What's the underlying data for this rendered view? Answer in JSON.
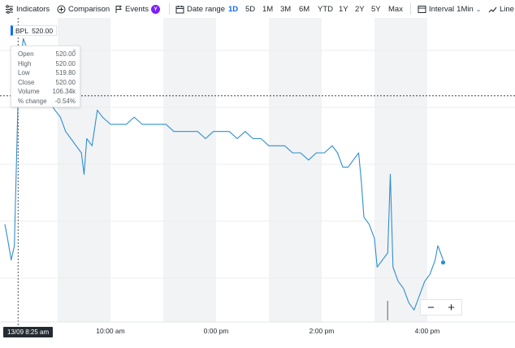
{
  "toolbar": {
    "indicators_label": "Indicators",
    "comparison_label": "Comparison",
    "events_label": "Events",
    "events_badge": "Y",
    "date_range_label": "Date range",
    "ranges": [
      "1D",
      "5D",
      "1M",
      "3M",
      "6M",
      "YTD",
      "1Y",
      "2Y",
      "5Y",
      "Max"
    ],
    "active_range": "1D",
    "interval_label": "Interval",
    "interval_value": "1Min",
    "chart_type_label": "Line"
  },
  "ticker": {
    "symbol": "BPL",
    "value": "520.00"
  },
  "tooltip": {
    "rows": [
      {
        "label": "Open",
        "value": "520.00"
      },
      {
        "label": "High",
        "value": "520.00"
      },
      {
        "label": "Low",
        "value": "519.80"
      },
      {
        "label": "Close",
        "value": "520.00"
      },
      {
        "label": "Volume",
        "value": "106.34k"
      },
      {
        "label": "% change",
        "value": "-0.54%"
      }
    ]
  },
  "crosshair_time": "13/09 8:25 am",
  "x_labels": [
    "10:00 am",
    "0:00 pm",
    "2:00 pm",
    "4:00 pm"
  ],
  "zoom": {
    "minus": "−",
    "plus": "+"
  },
  "colors": {
    "line": "#2f8fcf",
    "accent": "#0f69ff",
    "events_badge_bg": "#7e1fff",
    "shade": "#f2f3f5",
    "volume": "#7a7a7a"
  },
  "chart_data": {
    "type": "line",
    "x_start": "8:00 am",
    "x_end": "4:30 pm",
    "ylim": [
      489,
      530
    ],
    "series": [
      {
        "values": [
          [
            8.0,
            502
          ],
          [
            8.05,
            500
          ],
          [
            8.12,
            497
          ],
          [
            8.18,
            499
          ],
          [
            8.25,
            520
          ],
          [
            8.3,
            525
          ],
          [
            8.35,
            528
          ],
          [
            8.45,
            526
          ],
          [
            8.55,
            524
          ],
          [
            8.65,
            522
          ],
          [
            8.75,
            521
          ],
          [
            8.85,
            519
          ],
          [
            8.95,
            518
          ],
          [
            9.05,
            517
          ],
          [
            9.15,
            515
          ],
          [
            9.25,
            514
          ],
          [
            9.35,
            513
          ],
          [
            9.45,
            512
          ],
          [
            9.5,
            509
          ],
          [
            9.55,
            514
          ],
          [
            9.65,
            513
          ],
          [
            9.75,
            518
          ],
          [
            9.85,
            517
          ],
          [
            10.0,
            516
          ],
          [
            10.15,
            516
          ],
          [
            10.3,
            516
          ],
          [
            10.45,
            517
          ],
          [
            10.6,
            516
          ],
          [
            10.75,
            516
          ],
          [
            10.9,
            516
          ],
          [
            11.05,
            516
          ],
          [
            11.2,
            515
          ],
          [
            11.35,
            515
          ],
          [
            11.5,
            515
          ],
          [
            11.65,
            515
          ],
          [
            11.8,
            514
          ],
          [
            11.95,
            515
          ],
          [
            12.1,
            515
          ],
          [
            12.25,
            515
          ],
          [
            12.4,
            514
          ],
          [
            12.55,
            515
          ],
          [
            12.7,
            514
          ],
          [
            12.85,
            514
          ],
          [
            13.0,
            513
          ],
          [
            13.15,
            513
          ],
          [
            13.3,
            513
          ],
          [
            13.45,
            512
          ],
          [
            13.6,
            512
          ],
          [
            13.75,
            511
          ],
          [
            13.9,
            512
          ],
          [
            14.05,
            512
          ],
          [
            14.2,
            513
          ],
          [
            14.3,
            512
          ],
          [
            14.4,
            510
          ],
          [
            14.5,
            510
          ],
          [
            14.6,
            511
          ],
          [
            14.7,
            512
          ],
          [
            14.75,
            508
          ],
          [
            14.8,
            503
          ],
          [
            14.9,
            502
          ],
          [
            15.0,
            500
          ],
          [
            15.05,
            496
          ],
          [
            15.15,
            497
          ],
          [
            15.25,
            498
          ],
          [
            15.3,
            509
          ],
          [
            15.35,
            496
          ],
          [
            15.45,
            494
          ],
          [
            15.55,
            493
          ],
          [
            15.65,
            491
          ],
          [
            15.75,
            490
          ],
          [
            15.85,
            492
          ],
          [
            15.95,
            494
          ],
          [
            16.05,
            495
          ],
          [
            16.15,
            497
          ],
          [
            16.2,
            499
          ],
          [
            16.25,
            498
          ],
          [
            16.3,
            497
          ]
        ]
      }
    ],
    "last_point": [
      16.3,
      497
    ],
    "crosshair": {
      "x": 8.25,
      "y": 520.0
    },
    "volume_spikes": [
      [
        15.25,
        106.34
      ]
    ],
    "grid": true
  }
}
